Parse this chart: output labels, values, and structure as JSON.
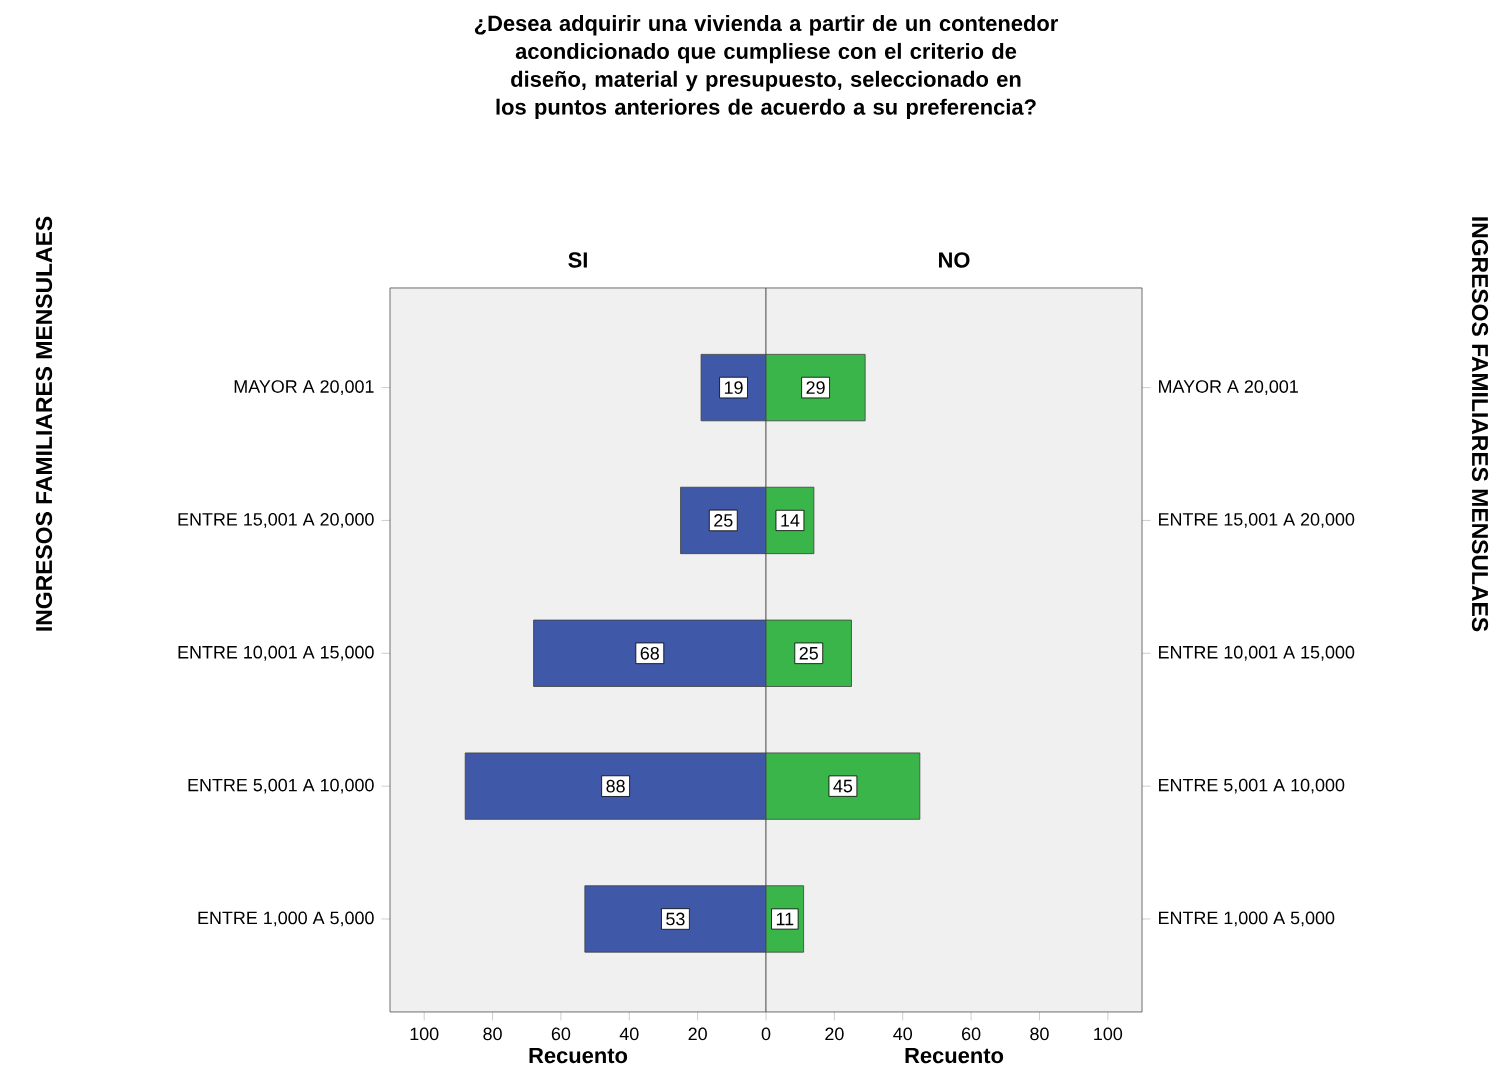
{
  "chart_data": [
    {
      "type": "bar",
      "orientation": "horizontal",
      "title": "¿Desea adquirir una vivienda a partir de un contenedor acondicionado que cumpliese con el criterio de diseño, material y presupuesto, seleccionado en los puntos anteriores de acuerdo a su preferencia?",
      "subtitle": "SI",
      "ylabel": "INGRESOS FAMILIARES MENSULAES",
      "xlabel": "Recuento",
      "categories": [
        "MAYOR A 20,001",
        "ENTRE 15,001 A 20,000",
        "ENTRE 10,001 A 15,000",
        "ENTRE 5,001 A 10,000",
        "ENTRE 1,000 A 5,000"
      ],
      "values": [
        19,
        25,
        68,
        88,
        53
      ],
      "color": "#3f58a8",
      "xlim": [
        110,
        0
      ],
      "xticks": [
        100,
        80,
        60,
        40,
        20
      ],
      "data_labels": true
    },
    {
      "type": "bar",
      "orientation": "horizontal",
      "subtitle": "NO",
      "ylabel": "INGRESOS FAMILIARES MENSULAES",
      "xlabel": "Recuento",
      "categories": [
        "MAYOR A 20,001",
        "ENTRE 15,001 A 20,000",
        "ENTRE 10,001 A 15,000",
        "ENTRE 5,001 A 10,000",
        "ENTRE 1,000 A 5,000"
      ],
      "values": [
        29,
        14,
        25,
        45,
        11
      ],
      "color": "#3ab54a",
      "xlim": [
        0,
        110
      ],
      "xticks": [
        0,
        20,
        40,
        60,
        80,
        100
      ],
      "data_labels": true
    }
  ]
}
